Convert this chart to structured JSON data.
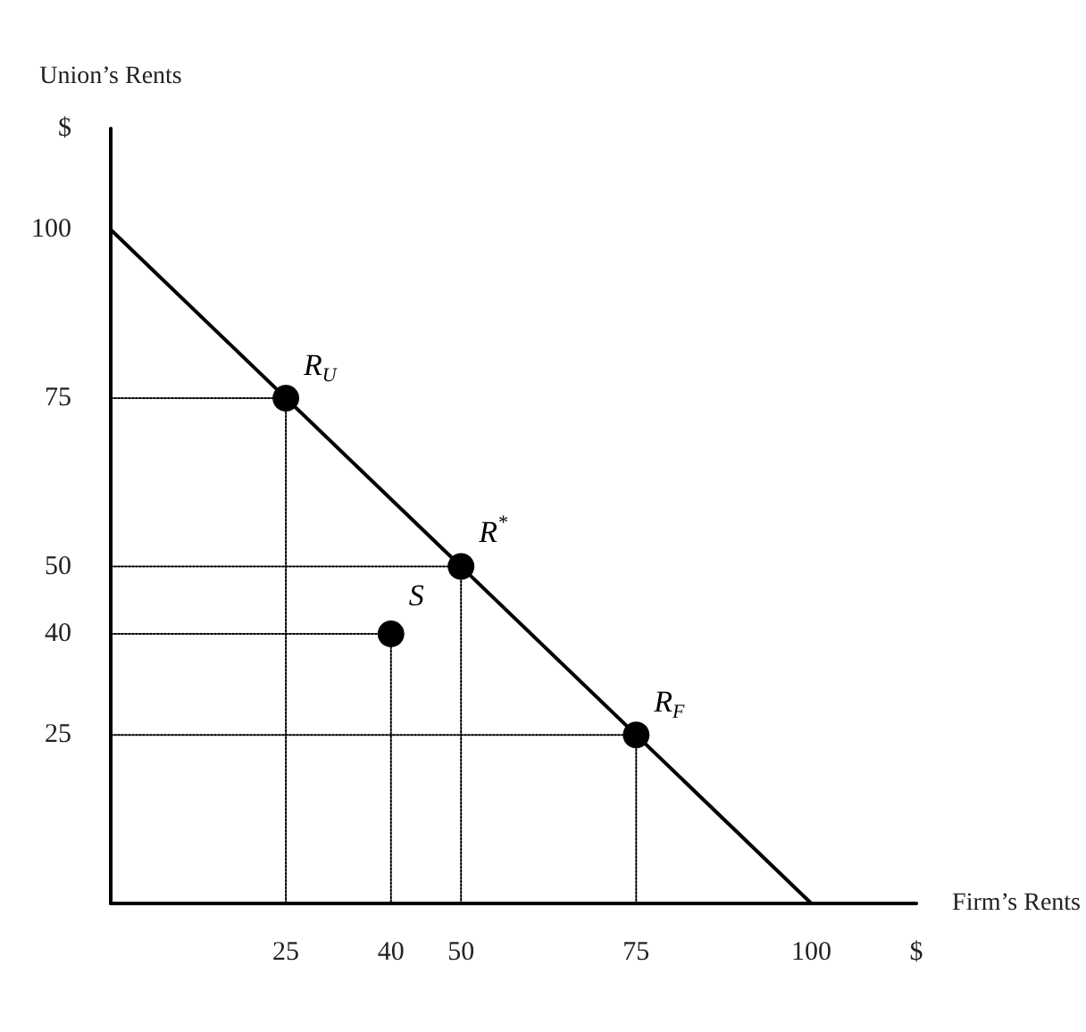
{
  "chart_data": {
    "type": "scatter",
    "xlabel": "Firm’s Rents",
    "ylabel": "Union’s Rents",
    "xlim": [
      0,
      115
    ],
    "ylim": [
      0,
      115
    ],
    "xticks": [
      25,
      40,
      50,
      75,
      100,
      {
        "value": 115,
        "label": "$"
      }
    ],
    "yticks": [
      25,
      40,
      50,
      75,
      100,
      {
        "value": 115,
        "label": "$"
      }
    ],
    "grid": false,
    "series": [
      {
        "type": "line",
        "color": "#000000",
        "line_style": "solid",
        "marker": "none",
        "x": [
          0,
          100
        ],
        "values": [
          100,
          0
        ]
      },
      {
        "type": "line",
        "color": "#000000",
        "line_style": "dotted",
        "marker": "none",
        "x": [
          0,
          25,
          25
        ],
        "values": [
          75,
          75,
          0
        ]
      },
      {
        "type": "line",
        "color": "#000000",
        "line_style": "dotted",
        "marker": "none",
        "x": [
          0,
          50,
          50
        ],
        "values": [
          50,
          50,
          0
        ]
      },
      {
        "type": "line",
        "color": "#000000",
        "line_style": "dotted",
        "marker": "none",
        "x": [
          0,
          40,
          40
        ],
        "values": [
          40,
          40,
          0
        ]
      },
      {
        "type": "line",
        "color": "#000000",
        "line_style": "dotted",
        "marker": "none",
        "x": [
          0,
          75,
          75
        ],
        "values": [
          25,
          25,
          0
        ]
      },
      {
        "color": "#000000",
        "marker": "circle",
        "x": [
          25,
          50,
          40,
          75
        ],
        "values": [
          75,
          50,
          40,
          25
        ]
      }
    ],
    "annotations": [
      {
        "text": "R$_{U}$",
        "x": 25,
        "y": 75
      },
      {
        "text": "R$^{*}$",
        "x": 50,
        "y": 50
      },
      {
        "text": "S",
        "x": 40,
        "y": 40
      },
      {
        "text": "R$_{F}$",
        "x": 75,
        "y": 25
      }
    ]
  }
}
